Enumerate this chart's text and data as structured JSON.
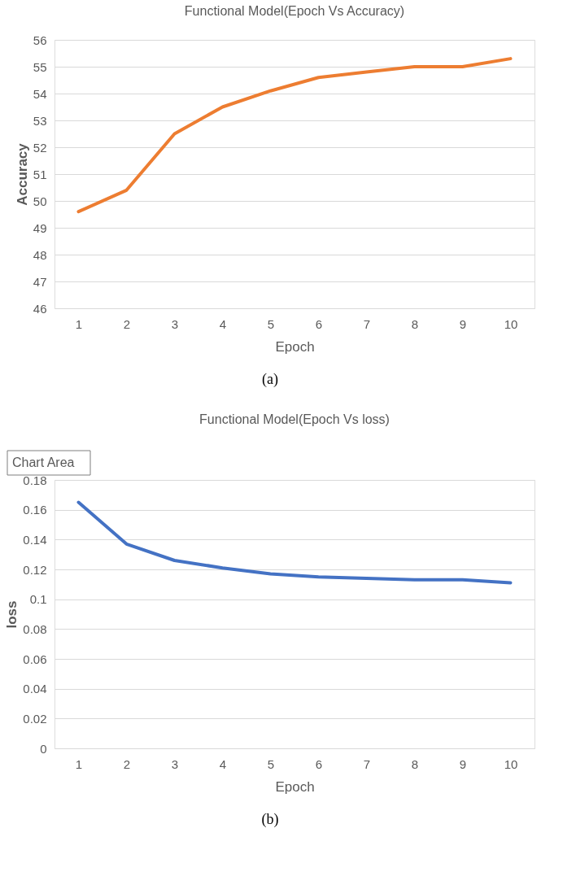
{
  "chart_data": [
    {
      "type": "line",
      "title": "Functional Model(Epoch Vs Accuracy)",
      "xlabel": "Epoch",
      "ylabel": "Accuracy",
      "categories": [
        "1",
        "2",
        "3",
        "4",
        "5",
        "6",
        "7",
        "8",
        "9",
        "10"
      ],
      "series": [
        {
          "color": "#ed7d31",
          "values": [
            49.6,
            50.4,
            52.5,
            53.5,
            54.1,
            54.6,
            54.8,
            55.0,
            55.0,
            55.3
          ]
        }
      ],
      "ylim": [
        46,
        56
      ],
      "yticks": [
        46,
        47,
        48,
        49,
        50,
        51,
        52,
        53,
        54,
        55,
        56
      ],
      "grid": "y",
      "marker": "none",
      "line_style": "solid",
      "annotations": [
        "(a)"
      ]
    },
    {
      "type": "line",
      "title": "Functional Model(Epoch Vs loss)",
      "xlabel": "Epoch",
      "ylabel": "loss",
      "categories": [
        "1",
        "2",
        "3",
        "4",
        "5",
        "6",
        "7",
        "8",
        "9",
        "10"
      ],
      "series": [
        {
          "color": "#4472c4",
          "values": [
            0.165,
            0.137,
            0.126,
            0.121,
            0.117,
            0.115,
            0.114,
            0.113,
            0.113,
            0.111
          ]
        }
      ],
      "ylim": [
        0,
        0.18
      ],
      "yticks": [
        0,
        0.02,
        0.04,
        0.06,
        0.08,
        0.1,
        0.12,
        0.14,
        0.16,
        0.18
      ],
      "grid": "y",
      "marker": "none",
      "line_style": "solid",
      "annotations": [
        "Chart Area",
        "(b)"
      ]
    }
  ]
}
